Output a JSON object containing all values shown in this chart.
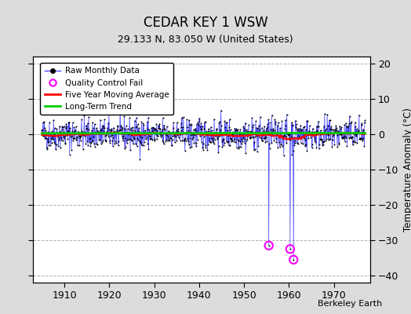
{
  "title": "CEDAR KEY 1 WSW",
  "subtitle": "29.133 N, 83.050 W (United States)",
  "ylabel": "Temperature Anomaly (°C)",
  "credit": "Berkeley Earth",
  "xlim": [
    1903,
    1978
  ],
  "ylim": [
    -42,
    22
  ],
  "yticks": [
    -40,
    -30,
    -20,
    -10,
    0,
    10,
    20
  ],
  "xticks": [
    1910,
    1920,
    1930,
    1940,
    1950,
    1960,
    1970
  ],
  "bg_color": "#dcdcdc",
  "plot_bg_color": "#ffffff",
  "seed": 42,
  "start_year": 1905,
  "end_year": 1977,
  "line_color_raw": "#4444ff",
  "dot_color_raw": "#000000",
  "line_color_moving_avg": "#ff0000",
  "line_color_trend": "#00cc00",
  "qc_circle_color": "#ff00ff",
  "grid_color": "#b0b0b0",
  "grid_style": "--",
  "spike1_year": 1955.5,
  "spike1_val": -31.5,
  "spike2_year": 1960.3,
  "spike2_val": -32.5,
  "spike3_year": 1961.0,
  "spike3_val": -35.5
}
